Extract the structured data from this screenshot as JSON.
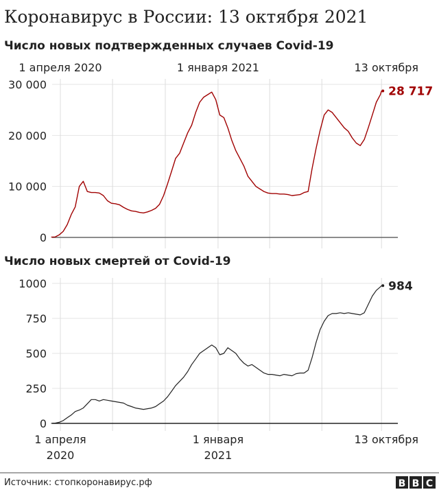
{
  "title": "Коронавирус в России: 13 октября 2021",
  "source": "Источник: стопкоронавирус.рф",
  "logo": "BBC",
  "chart_data": [
    {
      "type": "line",
      "title": "Число новых подтвержденных случаев Covid-19",
      "color": "#a00000",
      "x_tick_labels": [
        "1 апреля 2020",
        "1 января 2021",
        "13 октября"
      ],
      "y_ticks": [
        0,
        10000,
        20000,
        30000
      ],
      "y_tick_labels": [
        "0",
        "10 000",
        "20 000",
        "30 000"
      ],
      "ylim": [
        0,
        30000
      ],
      "grid": true,
      "end_label": "28 717",
      "x": [
        "2020-03-16",
        "2020-03-23",
        "2020-03-30",
        "2020-04-06",
        "2020-04-13",
        "2020-04-20",
        "2020-04-27",
        "2020-05-04",
        "2020-05-11",
        "2020-05-18",
        "2020-05-25",
        "2020-06-01",
        "2020-06-08",
        "2020-06-15",
        "2020-06-22",
        "2020-06-29",
        "2020-07-06",
        "2020-07-13",
        "2020-07-20",
        "2020-07-27",
        "2020-08-03",
        "2020-08-10",
        "2020-08-17",
        "2020-08-24",
        "2020-08-31",
        "2020-09-07",
        "2020-09-14",
        "2020-09-21",
        "2020-09-28",
        "2020-10-05",
        "2020-10-12",
        "2020-10-19",
        "2020-10-26",
        "2020-11-02",
        "2020-11-09",
        "2020-11-16",
        "2020-11-23",
        "2020-11-30",
        "2020-12-07",
        "2020-12-14",
        "2020-12-21",
        "2020-12-28",
        "2021-01-04",
        "2021-01-11",
        "2021-01-18",
        "2021-01-25",
        "2021-02-01",
        "2021-02-08",
        "2021-02-15",
        "2021-02-22",
        "2021-03-01",
        "2021-03-08",
        "2021-03-15",
        "2021-03-22",
        "2021-03-29",
        "2021-04-05",
        "2021-04-12",
        "2021-04-19",
        "2021-04-26",
        "2021-05-03",
        "2021-05-10",
        "2021-05-17",
        "2021-05-24",
        "2021-05-31",
        "2021-06-07",
        "2021-06-14",
        "2021-06-21",
        "2021-06-28",
        "2021-07-05",
        "2021-07-12",
        "2021-07-19",
        "2021-07-26",
        "2021-08-02",
        "2021-08-09",
        "2021-08-16",
        "2021-08-23",
        "2021-08-30",
        "2021-09-06",
        "2021-09-13",
        "2021-09-20",
        "2021-09-27",
        "2021-10-04",
        "2021-10-11",
        "2021-10-13"
      ],
      "values": [
        50,
        100,
        500,
        1200,
        2500,
        4500,
        6000,
        10000,
        11000,
        9000,
        8800,
        8800,
        8700,
        8200,
        7200,
        6700,
        6600,
        6400,
        5900,
        5500,
        5200,
        5100,
        4900,
        4800,
        5000,
        5300,
        5700,
        6500,
        8200,
        10500,
        13000,
        15500,
        16500,
        18500,
        20500,
        22000,
        24500,
        26500,
        27500,
        28000,
        28500,
        27000,
        24000,
        23500,
        21500,
        19000,
        17000,
        15500,
        14000,
        12000,
        11000,
        10000,
        9500,
        9000,
        8700,
        8600,
        8600,
        8500,
        8500,
        8400,
        8200,
        8300,
        8400,
        8800,
        9000,
        13500,
        17500,
        21000,
        24000,
        25000,
        24500,
        23500,
        22500,
        21500,
        20800,
        19500,
        18500,
        18000,
        19200,
        21500,
        24000,
        26500,
        28000,
        28717
      ]
    },
    {
      "type": "line",
      "title": "Число новых смертей от Covid-19",
      "color": "#222222",
      "x_tick_labels": [
        [
          "1 апреля",
          "2020"
        ],
        [
          "1 января",
          "2021"
        ],
        [
          "13 октября"
        ]
      ],
      "y_ticks": [
        0,
        250,
        500,
        750,
        1000
      ],
      "y_tick_labels": [
        "0",
        "250",
        "500",
        "750",
        "1000"
      ],
      "ylim": [
        0,
        1000
      ],
      "grid": true,
      "end_label": "984",
      "values": [
        0,
        2,
        8,
        20,
        40,
        60,
        85,
        95,
        110,
        140,
        170,
        170,
        160,
        170,
        165,
        160,
        155,
        150,
        145,
        130,
        120,
        110,
        105,
        100,
        105,
        110,
        120,
        140,
        160,
        190,
        230,
        270,
        300,
        330,
        370,
        420,
        460,
        500,
        520,
        540,
        560,
        540,
        490,
        500,
        540,
        520,
        500,
        460,
        430,
        410,
        420,
        400,
        380,
        360,
        350,
        350,
        345,
        340,
        350,
        345,
        340,
        355,
        360,
        360,
        380,
        470,
        580,
        670,
        730,
        770,
        785,
        785,
        790,
        785,
        790,
        785,
        780,
        775,
        790,
        850,
        910,
        950,
        975,
        984
      ]
    }
  ]
}
